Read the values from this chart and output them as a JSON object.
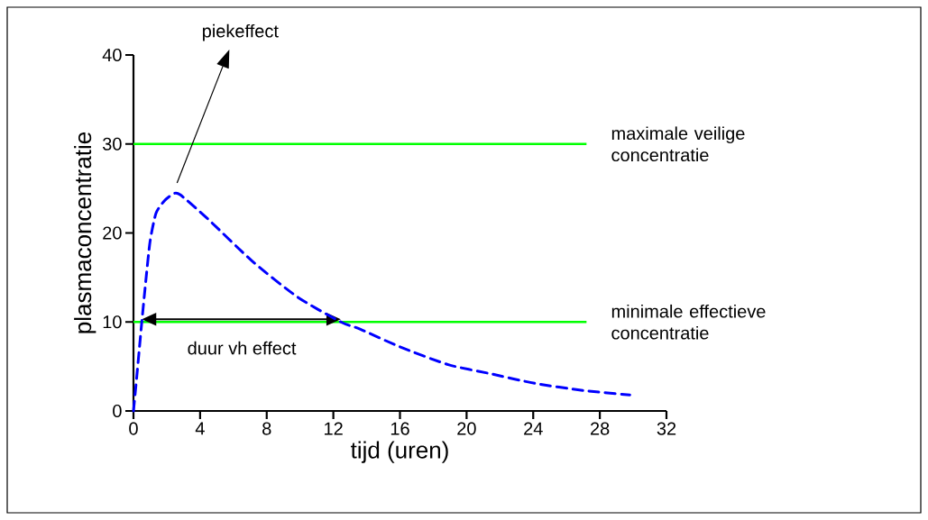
{
  "chart_data": {
    "type": "line",
    "xlabel": "tijd (uren)",
    "ylabel": "plasmaconcentratie",
    "x": [
      0,
      0.2,
      0.5,
      0.75,
      1.0,
      1.35,
      1.85,
      2.4,
      2.8,
      4.45,
      7.15,
      9.85,
      12.45,
      13.6,
      16,
      18.9,
      21.4,
      24.1,
      27,
      29.8
    ],
    "series": [
      {
        "color": "#0000ff",
        "line_style": "dashed",
        "values": [
          0,
          3.9,
          10,
          14.8,
          19.1,
          22.2,
          23.6,
          24.4,
          24.3,
          21.6,
          16.8,
          12.8,
          10,
          9.2,
          7.2,
          5.2,
          4.2,
          3.1,
          2.3,
          1.8
        ]
      }
    ],
    "xlim": [
      0,
      32
    ],
    "xticks": [
      0,
      4,
      8,
      12,
      16,
      20,
      24,
      28,
      32
    ],
    "ylim": [
      0,
      40
    ],
    "yticks": [
      0,
      10,
      20,
      30,
      40
    ],
    "marker": "none",
    "ref_lines": [
      {
        "axis": "y",
        "value": 30,
        "label": "maximale veilige concentratie",
        "color": "#00ff00"
      },
      {
        "axis": "y",
        "value": 10,
        "label": "minimale effectieve concentratie",
        "color": "#00ff00"
      }
    ],
    "annotations": [
      "piekeffect",
      {
        "text": "duur vh effect",
        "x": 6.5,
        "y": 10
      }
    ]
  }
}
